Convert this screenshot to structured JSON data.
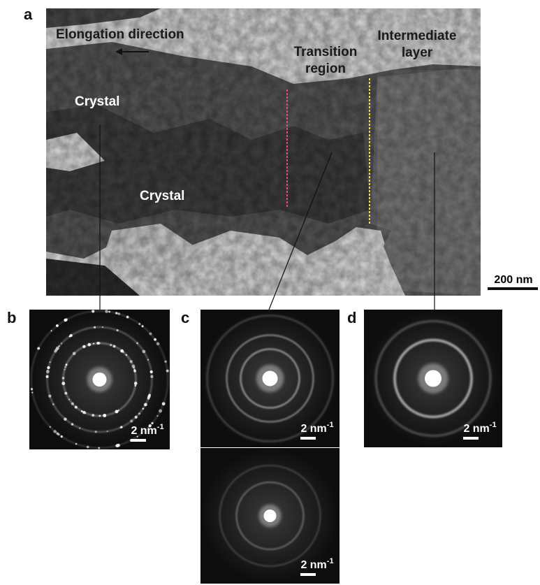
{
  "panel_labels": [
    "a",
    "b",
    "c",
    "d"
  ],
  "panel_a": {
    "elongation_direction": "Elongation direction",
    "transition_region": [
      "Transition",
      "region"
    ],
    "intermediate_layer": [
      "Intermediate",
      "layer"
    ],
    "crystal_labels": [
      "Crystal",
      "Crystal"
    ],
    "scale_bar": "200 nm"
  },
  "diffraction_scale_bars": [
    {
      "text": "2 nm",
      "superscript": "-1"
    },
    {
      "text": "2 nm",
      "superscript": "-1"
    },
    {
      "text": "2 nm",
      "superscript": "-1"
    },
    {
      "text": "2 nm",
      "superscript": "-1"
    }
  ]
}
